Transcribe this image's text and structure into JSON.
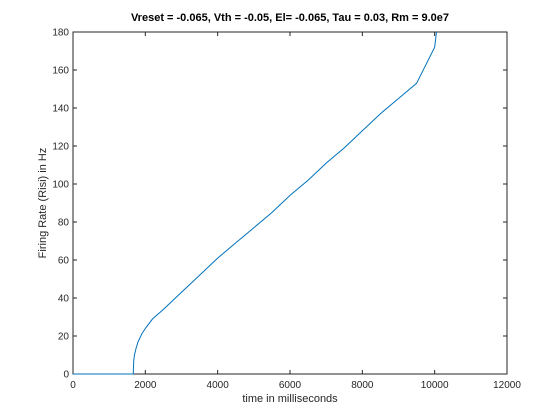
{
  "chart_data": {
    "type": "line",
    "title": "Vreset = -0.065, Vth = -0.05, El= -0.065, Tau = 0.03, Rm = 9.0e7",
    "xlabel": "time in milliseconds",
    "ylabel": "Firing Rate (Risi) in Hz",
    "xlim": [
      0,
      12000
    ],
    "ylim": [
      0,
      180
    ],
    "xticks": [
      0,
      2000,
      4000,
      6000,
      8000,
      10000,
      12000
    ],
    "yticks": [
      0,
      20,
      40,
      60,
      80,
      100,
      120,
      140,
      160,
      180
    ],
    "grid": false,
    "line_color": "#0072BD",
    "series": [
      {
        "x": [
          0,
          1600,
          1667,
          1670,
          1680,
          1700,
          1750,
          1800,
          1900,
          2000,
          2200,
          2500,
          3000,
          3500,
          4000,
          4500,
          5000,
          5500,
          6000,
          6500,
          7000,
          7500,
          8000,
          8500,
          9000,
          9500,
          10000,
          10050
        ],
        "y": [
          0,
          0,
          0,
          3,
          7,
          10,
          14,
          17,
          21,
          24,
          29,
          34,
          43,
          52,
          61,
          69,
          77,
          85,
          94,
          102,
          111,
          119,
          128,
          137,
          145,
          153,
          172,
          180
        ]
      }
    ]
  }
}
